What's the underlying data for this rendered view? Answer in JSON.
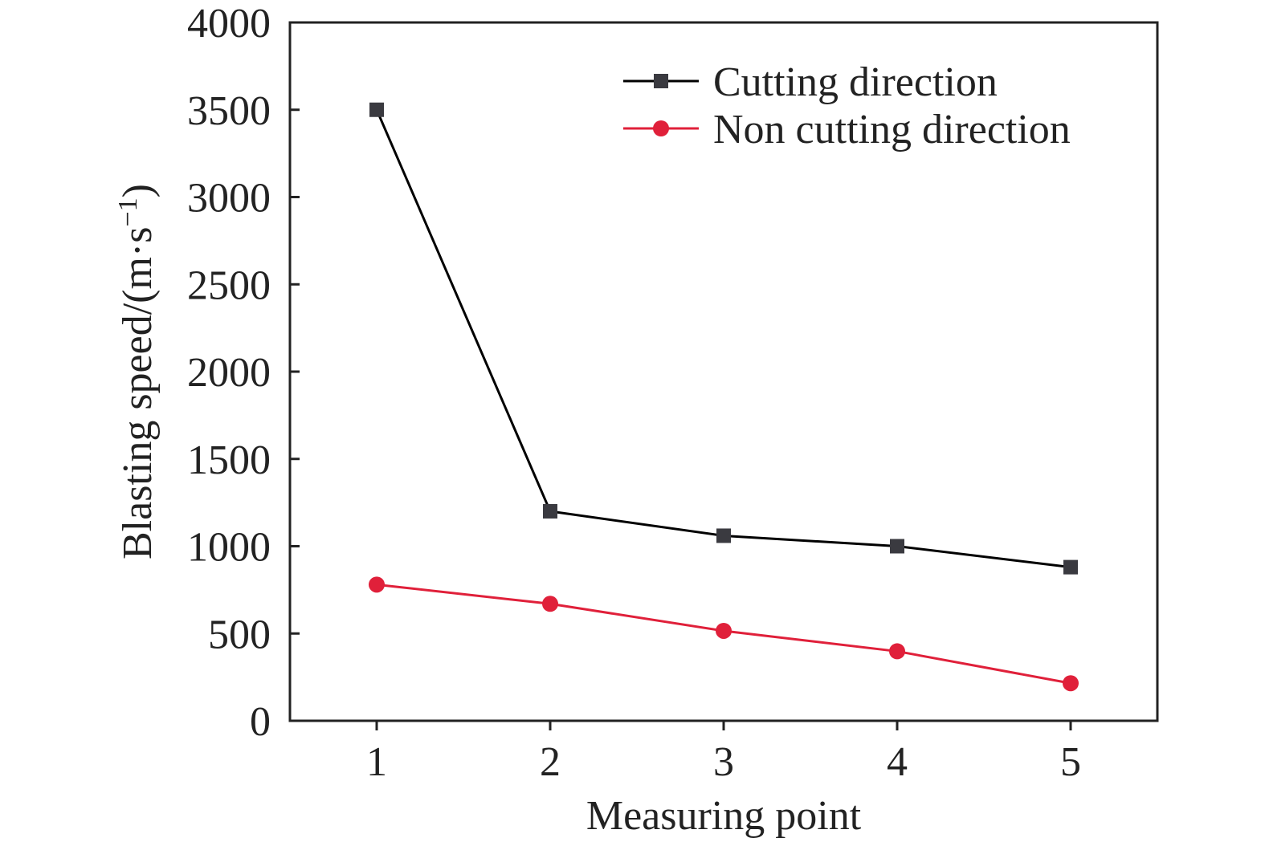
{
  "chart_data": {
    "type": "line",
    "xlabel": "Measuring point",
    "ylabel": "Blasting speed/(m·s",
    "ylabel_exponent": "−1",
    "ylabel_close": ")",
    "categories": [
      "1",
      "2",
      "3",
      "4",
      "5"
    ],
    "x": [
      1,
      2,
      3,
      4,
      5
    ],
    "xlim": [
      0.5,
      5.5
    ],
    "ylim": [
      0,
      4000
    ],
    "yticks": [
      0,
      500,
      1000,
      1500,
      2000,
      2500,
      3000,
      3500,
      4000
    ],
    "grid": false,
    "legend_position": "top-right",
    "series": [
      {
        "name": "Cutting direction",
        "values": [
          3500,
          1200,
          1060,
          1000,
          880
        ],
        "color": "#000000",
        "marker_color": "#3a3a40",
        "marker": "square"
      },
      {
        "name": "Non cutting direction",
        "values": [
          780,
          670,
          515,
          398,
          215
        ],
        "color": "#e0203a",
        "marker_color": "#e0203a",
        "marker": "circle"
      }
    ]
  }
}
